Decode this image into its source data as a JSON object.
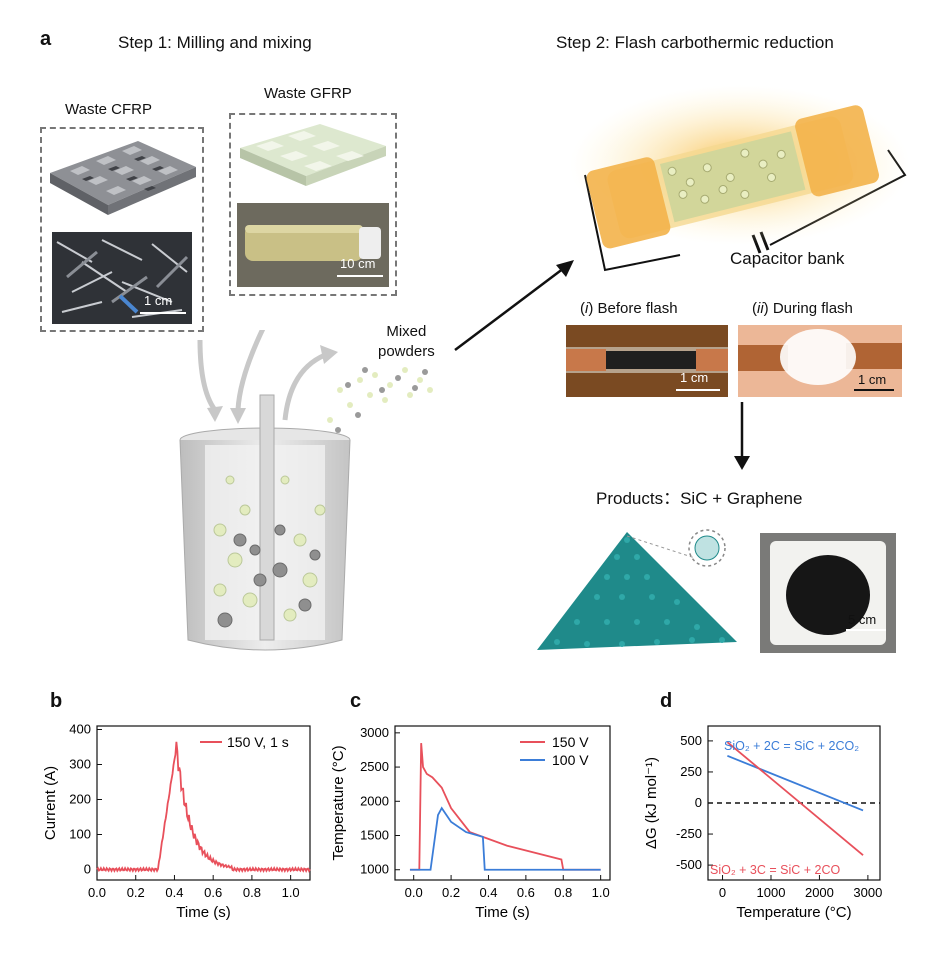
{
  "panel_a": {
    "letter": "a",
    "step1_title": "Step 1: Milling and mixing",
    "step2_title": "Step 2: Flash carbothermic reduction",
    "waste_cfrp_label": "Waste CFRP",
    "waste_gfrp_label": "Waste GFRP",
    "cfrp_scale": "1 cm",
    "gfrp_scale": "10 cm",
    "mixed_powders_label": [
      "Mixed",
      "powders"
    ],
    "capacitor_label": "Capacitor bank",
    "before_flash_num": "i",
    "before_flash_label": "Before flash",
    "during_flash_num": "ii",
    "during_flash_label": "During flash",
    "before_scale": "1 cm",
    "during_scale": "1 cm",
    "products_label": "Products：SiC + Graphene",
    "product_scale": "5 cm"
  },
  "colors": {
    "red_line": "#e8505b",
    "blue_line": "#3b7dd8",
    "teal_powder": "#1f8a8a",
    "glow": "#f6b73c"
  },
  "chart_data": [
    {
      "panel": "b",
      "type": "line",
      "xlabel": "Time (s)",
      "ylabel": "Current (A)",
      "xlim": [
        0.0,
        1.1
      ],
      "ylim": [
        -30,
        410
      ],
      "xticks": [
        "0.0",
        "0.2",
        "0.4",
        "0.6",
        "0.8",
        "1.0"
      ],
      "yticks": [
        "0",
        "100",
        "200",
        "300",
        "400"
      ],
      "legend": "top-right",
      "series": [
        {
          "name": "150 V, 1 s",
          "color": "#e8505b",
          "peak": {
            "x": 0.41,
            "y": 350
          },
          "onset_x": 0.32,
          "decay_end_x": 0.7
        }
      ]
    },
    {
      "panel": "c",
      "type": "line",
      "xlabel": "Time (s)",
      "ylabel": "Temperature (°C)",
      "xlim": [
        -0.1,
        1.05
      ],
      "ylim": [
        850,
        3100
      ],
      "xticks": [
        "0.0",
        "0.2",
        "0.4",
        "0.6",
        "0.8",
        "1.0"
      ],
      "yticks": [
        "1000",
        "1500",
        "2000",
        "2500",
        "3000"
      ],
      "legend": "top-right",
      "series": [
        {
          "name": "150 V",
          "color": "#e8505b",
          "x": [
            -0.02,
            0.03,
            0.04,
            0.05,
            0.07,
            0.1,
            0.15,
            0.2,
            0.3,
            0.5,
            0.79,
            0.8,
            1.0
          ],
          "y": [
            1000,
            1000,
            2850,
            2500,
            2400,
            2350,
            2200,
            1900,
            1550,
            1350,
            1150,
            1000,
            1000
          ]
        },
        {
          "name": "100 V",
          "color": "#3b7dd8",
          "x": [
            -0.02,
            0.09,
            0.13,
            0.15,
            0.2,
            0.28,
            0.37,
            0.38,
            1.0
          ],
          "y": [
            1000,
            1000,
            1800,
            1900,
            1700,
            1550,
            1480,
            1000,
            1000
          ]
        }
      ]
    },
    {
      "panel": "d",
      "type": "line",
      "xlabel": "Temperature (°C)",
      "ylabel": "ΔG (kJ mol⁻¹)",
      "xlim": [
        -300,
        3250
      ],
      "ylim": [
        -620,
        620
      ],
      "xticks": [
        "0",
        "1000",
        "2000",
        "3000"
      ],
      "yticks": [
        "500",
        "250",
        "0",
        "-250",
        "-500"
      ],
      "series": [
        {
          "name": "SiO₂ + 2C = SiC + 2CO₂",
          "color": "#3b7dd8",
          "x": [
            100,
            2900
          ],
          "y": [
            380,
            -60
          ]
        },
        {
          "name": "SiO₂ + 3C = SiC + 2CO",
          "color": "#e8505b",
          "x": [
            100,
            2900
          ],
          "y": [
            490,
            -420
          ]
        }
      ],
      "reference_line": {
        "y": 0,
        "style": "dashed"
      }
    }
  ]
}
